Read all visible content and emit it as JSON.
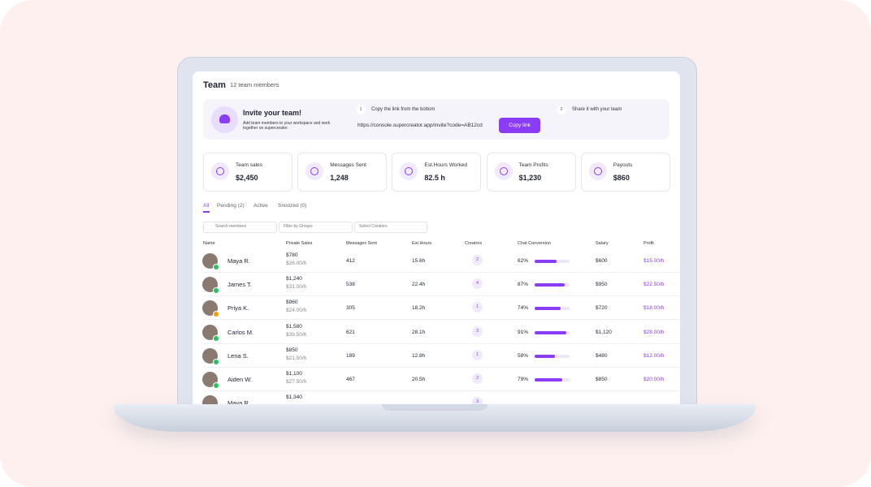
{
  "header": {
    "title": "Team",
    "subtitle": "12 team members"
  },
  "invite": {
    "title": "Invite your team!",
    "description": "Add team members to your workspace and work together on supercreator.",
    "steps": [
      {
        "number": "1",
        "text": "Copy the link from the bottom"
      },
      {
        "number": "2",
        "text": "Share it with your team"
      }
    ],
    "url": "https://console.supercreator.app/invite?code=AB12cd",
    "button": "Copy link"
  },
  "stats": [
    {
      "label": "Team sales",
      "value": "$2,450"
    },
    {
      "label": "Messages Sent",
      "value": "1,248"
    },
    {
      "label": "Est.Hours Worked",
      "value": "82.5 h"
    },
    {
      "label": "Team Profits",
      "value": "$1,230"
    },
    {
      "label": "Payouts",
      "value": "$860"
    }
  ],
  "tabs": [
    "All",
    "Pending (2)",
    "Active",
    "Snoozed (0)"
  ],
  "filters": [
    "Search members",
    "Filter by Groups",
    "Select Creators"
  ],
  "table": {
    "columns": [
      "Name",
      "Private Sales",
      "Messages Sent",
      "Est.Hours",
      "Creators",
      "Chat Conversion",
      "Salary",
      "Profit"
    ],
    "rows": [
      {
        "name": "Maya R.",
        "sales": "$780",
        "rate": "$26.00/h",
        "messages": "412",
        "hours": "15.6h",
        "creators": "2",
        "conversion": {
          "value": 62,
          "label": "62%"
        },
        "salary": "$600",
        "profit": "$15.00/h",
        "status_color": "#22c55e"
      },
      {
        "name": "James T.",
        "sales": "$1,240",
        "rate": "$31.00/h",
        "messages": "538",
        "hours": "22.4h",
        "creators": "4",
        "conversion": {
          "value": 87,
          "label": "87%"
        },
        "salary": "$950",
        "profit": "$22.50/h",
        "status_color": "#22c55e"
      },
      {
        "name": "Priya K.",
        "sales": "$960",
        "rate": "$24.00/h",
        "messages": "305",
        "hours": "18.2h",
        "creators": "1",
        "conversion": {
          "value": 74,
          "label": "74%"
        },
        "salary": "$720",
        "profit": "$18.00/h",
        "status_color": "#f59e0b"
      },
      {
        "name": "Carlos M.",
        "sales": "$1,580",
        "rate": "$39.50/h",
        "messages": "621",
        "hours": "28.1h",
        "creators": "3",
        "conversion": {
          "value": 91,
          "label": "91%"
        },
        "salary": "$1,120",
        "profit": "$28.00/h",
        "status_color": "#22c55e"
      },
      {
        "name": "Lena S.",
        "sales": "$850",
        "rate": "$21.50/h",
        "messages": "189",
        "hours": "12.8h",
        "creators": "1",
        "conversion": {
          "value": 58,
          "label": "58%"
        },
        "salary": "$480",
        "profit": "$12.00/h",
        "status_color": "#22c55e"
      },
      {
        "name": "Aiden W.",
        "sales": "$1,100",
        "rate": "$27.50/h",
        "messages": "467",
        "hours": "20.5h",
        "creators": "2",
        "conversion": {
          "value": 79,
          "label": "79%"
        },
        "salary": "$850",
        "profit": "$20.00/h",
        "status_color": "#22c55e"
      },
      {
        "name": "Maya R.",
        "sales": "$1,340",
        "creators": "3",
        "status_color": "#22c55e"
      }
    ]
  }
}
